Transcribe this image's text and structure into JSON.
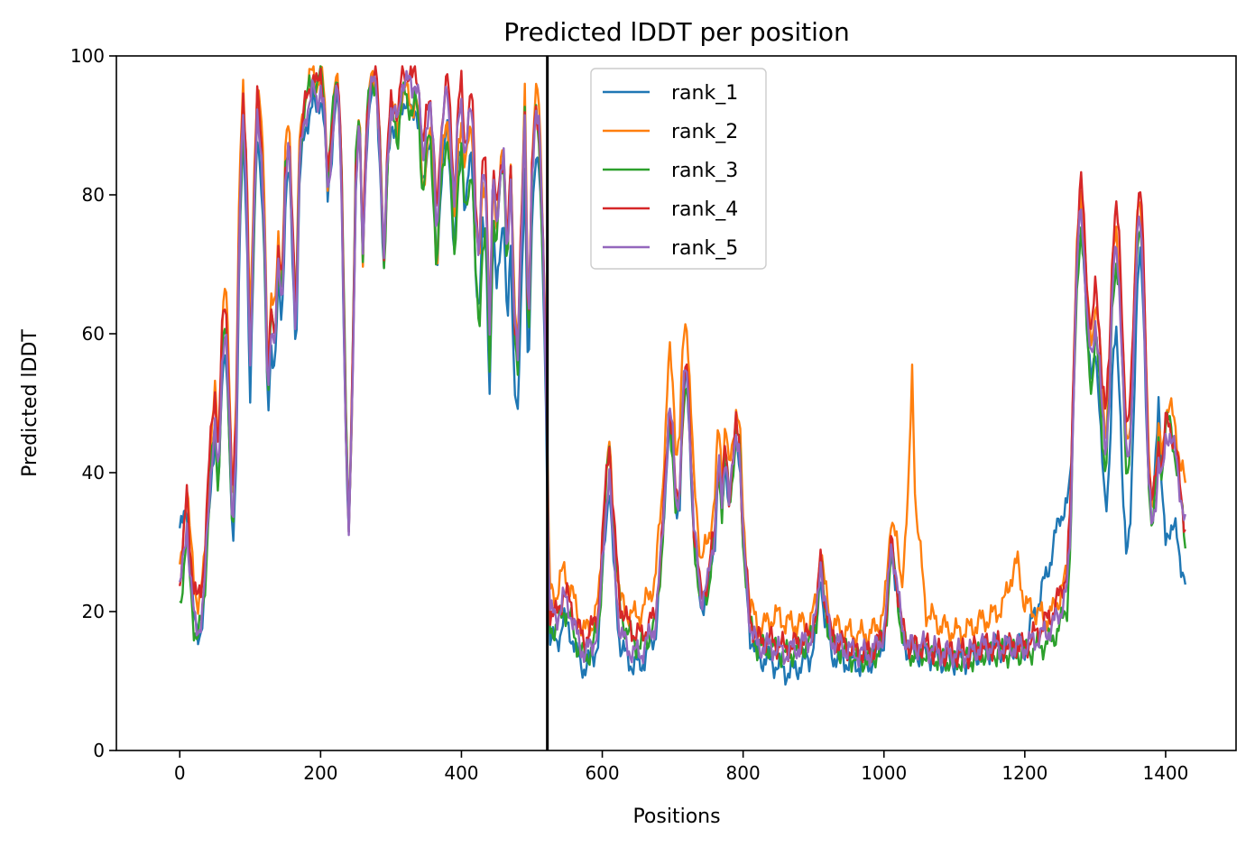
{
  "chart_data": {
    "type": "line",
    "title": "Predicted lDDT per position",
    "xlabel": "Positions",
    "ylabel": "Predicted lDDT",
    "xlim": [
      -90,
      1500
    ],
    "ylim": [
      0,
      100
    ],
    "xticks": [
      0,
      200,
      400,
      600,
      800,
      1000,
      1200,
      1400
    ],
    "yticks": [
      0,
      20,
      40,
      60,
      80,
      100
    ],
    "grid": false,
    "legend": "upper-center",
    "vline": {
      "x": 522,
      "color": "#000000"
    },
    "anchors": [
      [
        0,
        23
      ],
      [
        5,
        27
      ],
      [
        10,
        33
      ],
      [
        15,
        25
      ],
      [
        20,
        19
      ],
      [
        25,
        17
      ],
      [
        30,
        19
      ],
      [
        35,
        23
      ],
      [
        40,
        33
      ],
      [
        45,
        42
      ],
      [
        50,
        47
      ],
      [
        55,
        38
      ],
      [
        60,
        56
      ],
      [
        65,
        62
      ],
      [
        70,
        48
      ],
      [
        75,
        31
      ],
      [
        80,
        45
      ],
      [
        85,
        77
      ],
      [
        90,
        91
      ],
      [
        95,
        80
      ],
      [
        100,
        55
      ],
      [
        105,
        75
      ],
      [
        110,
        92
      ],
      [
        115,
        88
      ],
      [
        120,
        75
      ],
      [
        125,
        50
      ],
      [
        130,
        62
      ],
      [
        135,
        58
      ],
      [
        140,
        70
      ],
      [
        145,
        64
      ],
      [
        150,
        82
      ],
      [
        155,
        87
      ],
      [
        160,
        73
      ],
      [
        165,
        60
      ],
      [
        170,
        84
      ],
      [
        175,
        89
      ],
      [
        180,
        92
      ],
      [
        185,
        94
      ],
      [
        190,
        95
      ],
      [
        195,
        93
      ],
      [
        200,
        96
      ],
      [
        205,
        92
      ],
      [
        210,
        80
      ],
      [
        215,
        86
      ],
      [
        220,
        93
      ],
      [
        225,
        95
      ],
      [
        230,
        80
      ],
      [
        235,
        50
      ],
      [
        240,
        30
      ],
      [
        245,
        50
      ],
      [
        250,
        82
      ],
      [
        255,
        91
      ],
      [
        260,
        70
      ],
      [
        265,
        88
      ],
      [
        270,
        95
      ],
      [
        275,
        96
      ],
      [
        280,
        95
      ],
      [
        285,
        85
      ],
      [
        290,
        70
      ],
      [
        295,
        85
      ],
      [
        300,
        93
      ],
      [
        305,
        92
      ],
      [
        310,
        90
      ],
      [
        315,
        96
      ],
      [
        320,
        97
      ],
      [
        325,
        96
      ],
      [
        330,
        95
      ],
      [
        335,
        97
      ],
      [
        340,
        94
      ],
      [
        345,
        84
      ],
      [
        350,
        90
      ],
      [
        355,
        94
      ],
      [
        360,
        86
      ],
      [
        365,
        74
      ],
      [
        370,
        86
      ],
      [
        375,
        92
      ],
      [
        380,
        95
      ],
      [
        385,
        88
      ],
      [
        390,
        78
      ],
      [
        395,
        90
      ],
      [
        400,
        94
      ],
      [
        405,
        85
      ],
      [
        410,
        90
      ],
      [
        415,
        93
      ],
      [
        420,
        78
      ],
      [
        425,
        70
      ],
      [
        430,
        83
      ],
      [
        435,
        82
      ],
      [
        440,
        60
      ],
      [
        445,
        83
      ],
      [
        450,
        76
      ],
      [
        455,
        83
      ],
      [
        460,
        85
      ],
      [
        465,
        70
      ],
      [
        470,
        84
      ],
      [
        475,
        62
      ],
      [
        480,
        56
      ],
      [
        485,
        75
      ],
      [
        490,
        92
      ],
      [
        495,
        58
      ],
      [
        500,
        82
      ],
      [
        505,
        93
      ],
      [
        510,
        90
      ],
      [
        515,
        76
      ],
      [
        520,
        55
      ],
      [
        525,
        20
      ],
      [
        535,
        19
      ],
      [
        545,
        22
      ],
      [
        555,
        20
      ],
      [
        565,
        16
      ],
      [
        575,
        14
      ],
      [
        585,
        15
      ],
      [
        595,
        18
      ],
      [
        605,
        35
      ],
      [
        610,
        40
      ],
      [
        615,
        30
      ],
      [
        625,
        17
      ],
      [
        635,
        15
      ],
      [
        645,
        14
      ],
      [
        655,
        14
      ],
      [
        665,
        16
      ],
      [
        675,
        18
      ],
      [
        685,
        30
      ],
      [
        695,
        50
      ],
      [
        700,
        45
      ],
      [
        705,
        35
      ],
      [
        710,
        38
      ],
      [
        715,
        52
      ],
      [
        720,
        55
      ],
      [
        725,
        45
      ],
      [
        730,
        32
      ],
      [
        740,
        22
      ],
      [
        750,
        24
      ],
      [
        760,
        32
      ],
      [
        765,
        42
      ],
      [
        770,
        35
      ],
      [
        775,
        44
      ],
      [
        780,
        36
      ],
      [
        785,
        40
      ],
      [
        790,
        46
      ],
      [
        795,
        44
      ],
      [
        800,
        30
      ],
      [
        810,
        18
      ],
      [
        820,
        15
      ],
      [
        840,
        15
      ],
      [
        860,
        14
      ],
      [
        880,
        15
      ],
      [
        895,
        16
      ],
      [
        905,
        20
      ],
      [
        910,
        28
      ],
      [
        915,
        22
      ],
      [
        925,
        16
      ],
      [
        940,
        15
      ],
      [
        960,
        14
      ],
      [
        980,
        14
      ],
      [
        990,
        15
      ],
      [
        1000,
        17
      ],
      [
        1005,
        22
      ],
      [
        1010,
        30
      ],
      [
        1015,
        27
      ],
      [
        1025,
        18
      ],
      [
        1035,
        15
      ],
      [
        1060,
        15
      ],
      [
        1080,
        14
      ],
      [
        1100,
        14
      ],
      [
        1120,
        14
      ],
      [
        1140,
        15
      ],
      [
        1160,
        15
      ],
      [
        1180,
        15
      ],
      [
        1200,
        15
      ],
      [
        1215,
        16
      ],
      [
        1230,
        17
      ],
      [
        1240,
        18
      ],
      [
        1250,
        20
      ],
      [
        1260,
        23
      ],
      [
        1265,
        32
      ],
      [
        1270,
        55
      ],
      [
        1275,
        72
      ],
      [
        1280,
        78
      ],
      [
        1285,
        70
      ],
      [
        1290,
        60
      ],
      [
        1295,
        55
      ],
      [
        1300,
        62
      ],
      [
        1305,
        58
      ],
      [
        1310,
        48
      ],
      [
        1315,
        42
      ],
      [
        1320,
        52
      ],
      [
        1325,
        68
      ],
      [
        1330,
        72
      ],
      [
        1335,
        66
      ],
      [
        1340,
        52
      ],
      [
        1345,
        40
      ],
      [
        1350,
        45
      ],
      [
        1355,
        60
      ],
      [
        1360,
        74
      ],
      [
        1365,
        76
      ],
      [
        1370,
        62
      ],
      [
        1375,
        40
      ],
      [
        1380,
        32
      ],
      [
        1385,
        35
      ],
      [
        1390,
        42
      ],
      [
        1395,
        38
      ],
      [
        1400,
        45
      ],
      [
        1405,
        46
      ],
      [
        1410,
        44
      ],
      [
        1415,
        42
      ],
      [
        1420,
        38
      ],
      [
        1428,
        32
      ]
    ],
    "series": [
      {
        "name": "rank_1",
        "color": "#1f77b4",
        "offsets": [
          [
            0,
            9
          ],
          [
            10,
            2
          ],
          [
            25,
            -1
          ],
          [
            100,
            -4
          ],
          [
            250,
            0
          ],
          [
            470,
            -10
          ],
          [
            525,
            -4
          ],
          [
            580,
            -2
          ],
          [
            800,
            -1
          ],
          [
            870,
            -3
          ],
          [
            1000,
            -1
          ],
          [
            1100,
            -1
          ],
          [
            1200,
            0
          ],
          [
            1230,
            8
          ],
          [
            1250,
            14
          ],
          [
            1260,
            12
          ],
          [
            1270,
            2
          ],
          [
            1300,
            -4
          ],
          [
            1340,
            -16
          ],
          [
            1380,
            2
          ],
          [
            1390,
            10
          ],
          [
            1400,
            -15
          ],
          [
            1410,
            -12
          ],
          [
            1428,
            -8
          ]
        ]
      },
      {
        "name": "rank_2",
        "color": "#ff7f0e",
        "offsets": [
          [
            0,
            2
          ],
          [
            10,
            6
          ],
          [
            40,
            3
          ],
          [
            60,
            6
          ],
          [
            300,
            0
          ],
          [
            360,
            -5
          ],
          [
            480,
            2
          ],
          [
            530,
            3
          ],
          [
            540,
            4
          ],
          [
            580,
            3
          ],
          [
            690,
            7
          ],
          [
            700,
            8
          ],
          [
            800,
            3
          ],
          [
            830,
            3
          ],
          [
            850,
            5
          ],
          [
            900,
            2
          ],
          [
            1000,
            3
          ],
          [
            1025,
            6
          ],
          [
            1035,
            22
          ],
          [
            1040,
            40
          ],
          [
            1045,
            20
          ],
          [
            1060,
            5
          ],
          [
            1100,
            3
          ],
          [
            1150,
            4
          ],
          [
            1170,
            6
          ],
          [
            1180,
            10
          ],
          [
            1190,
            12
          ],
          [
            1200,
            6
          ],
          [
            1230,
            2
          ],
          [
            1300,
            3
          ],
          [
            1420,
            4
          ],
          [
            1428,
            6
          ]
        ]
      },
      {
        "name": "rank_3",
        "color": "#2ca02c",
        "offsets": [
          [
            0,
            -2
          ],
          [
            20,
            -1
          ],
          [
            100,
            0
          ],
          [
            240,
            3
          ],
          [
            430,
            -10
          ],
          [
            460,
            0
          ],
          [
            525,
            -2
          ],
          [
            600,
            0
          ],
          [
            610,
            4
          ],
          [
            700,
            -2
          ],
          [
            800,
            0
          ],
          [
            1000,
            -1
          ],
          [
            1200,
            -1
          ],
          [
            1300,
            -3
          ],
          [
            1400,
            2
          ],
          [
            1428,
            -2
          ]
        ]
      },
      {
        "name": "rank_4",
        "color": "#d62728",
        "offsets": [
          [
            0,
            1
          ],
          [
            10,
            4
          ],
          [
            50,
            5
          ],
          [
            100,
            2
          ],
          [
            200,
            2
          ],
          [
            300,
            1
          ],
          [
            400,
            2
          ],
          [
            525,
            0
          ],
          [
            600,
            3
          ],
          [
            610,
            5
          ],
          [
            700,
            0
          ],
          [
            800,
            1
          ],
          [
            1000,
            0
          ],
          [
            1200,
            0
          ],
          [
            1280,
            4
          ],
          [
            1330,
            6
          ],
          [
            1370,
            4
          ],
          [
            1428,
            0
          ]
        ]
      },
      {
        "name": "rank_5",
        "color": "#9467bd",
        "offsets": [
          [
            0,
            0
          ],
          [
            100,
            0
          ],
          [
            500,
            0
          ],
          [
            525,
            0
          ],
          [
            800,
            0
          ],
          [
            1000,
            0
          ],
          [
            1200,
            0
          ],
          [
            1428,
            0
          ]
        ]
      }
    ]
  }
}
